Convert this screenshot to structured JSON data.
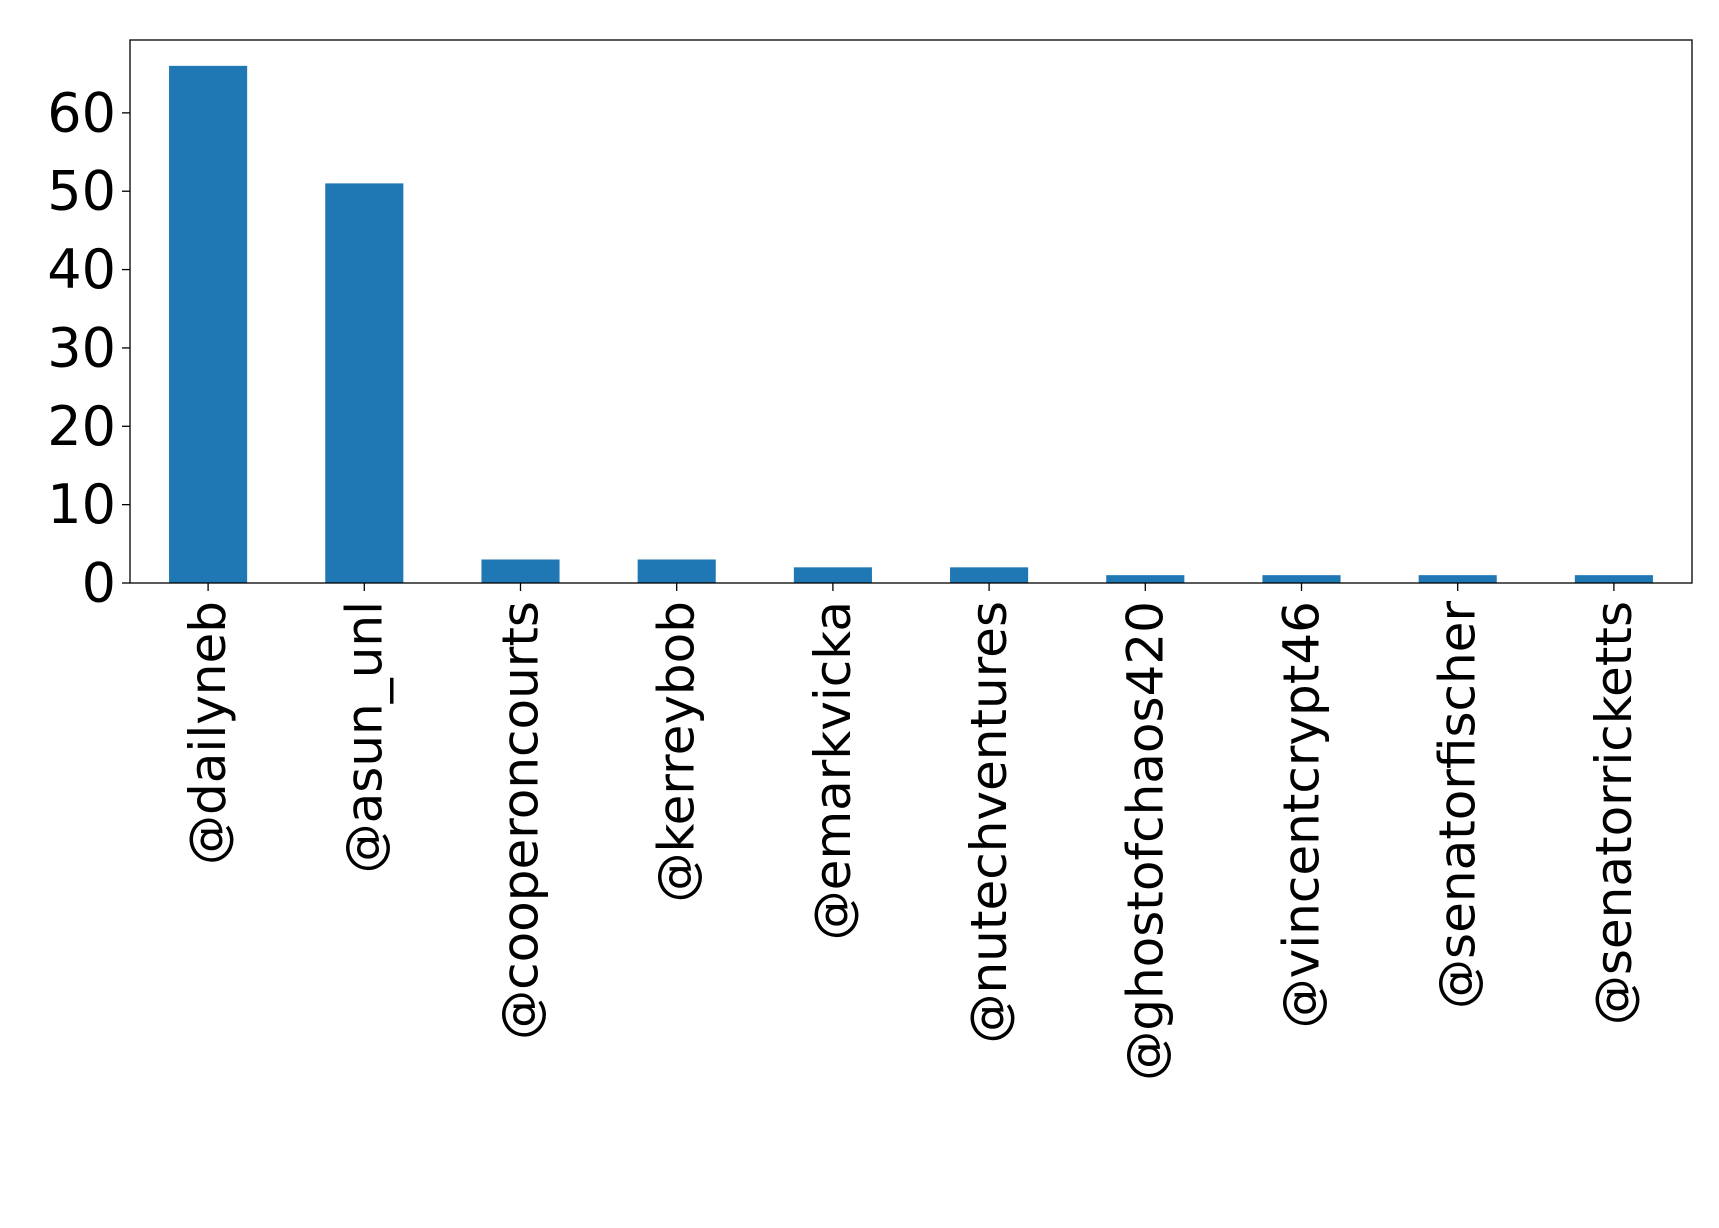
{
  "chart_data": {
    "type": "bar",
    "title": "",
    "xlabel": "",
    "ylabel": "",
    "categories": [
      "@dailyneb",
      "@asun_unl",
      "@cooperoncourts",
      "@kerreybob",
      "@emarkvicka",
      "@nutechventures",
      "@ghostofchaos420",
      "@vincentcrypt46",
      "@senatorfischer",
      "@senatorricketts"
    ],
    "values": [
      66,
      51,
      3,
      3,
      2,
      2,
      1,
      1,
      1,
      1
    ],
    "ylim": [
      0,
      69.3
    ],
    "yticks": [
      "0",
      "10",
      "20",
      "30",
      "40",
      "50",
      "60"
    ],
    "grid": false,
    "legend": "none",
    "bar_color": "#1f77b4"
  }
}
